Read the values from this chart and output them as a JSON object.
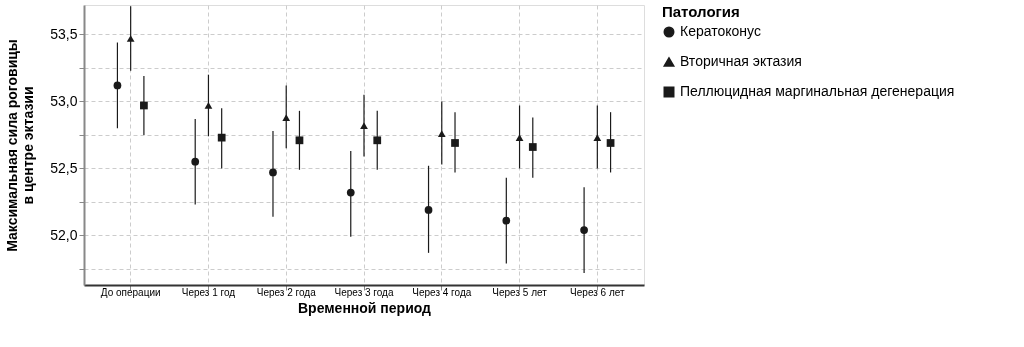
{
  "chart_data": {
    "type": "scatter",
    "xlabel": "Временной период",
    "ylabel": "Максимальная сила роговицы\nв центре эктазии",
    "legend_title": "Патология",
    "legend": "right",
    "grid": true,
    "line_style": "dashed",
    "categories": [
      "До операции",
      "Через 1 год",
      "Через 2 года",
      "Через 3 года",
      "Через 4 года",
      "Через 5 лет",
      "Через 6 лет"
    ],
    "ylim": [
      51.63,
      53.72
    ],
    "yticks": [
      {
        "value": 51.75,
        "label": null
      },
      {
        "value": 52.0,
        "label": "52,0"
      },
      {
        "value": 52.25,
        "label": null
      },
      {
        "value": 52.5,
        "label": "52,5"
      },
      {
        "value": 52.75,
        "label": null
      },
      {
        "value": 53.0,
        "label": "53,0"
      },
      {
        "value": 53.25,
        "label": null
      },
      {
        "value": 53.5,
        "label": "53,5"
      }
    ],
    "series": [
      {
        "name": "Кератоконус",
        "color": "#1a1a1a",
        "marker": "circle",
        "values": [
          53.12,
          52.55,
          52.47,
          52.32,
          52.19,
          52.11,
          52.04
        ],
        "errors": [
          [
            52.8,
            53.44
          ],
          [
            52.23,
            52.87
          ],
          [
            52.14,
            52.78
          ],
          [
            51.99,
            52.63
          ],
          [
            51.87,
            52.52
          ],
          [
            51.79,
            52.43
          ],
          [
            51.72,
            52.36
          ]
        ]
      },
      {
        "name": "Вторичная эктазия",
        "color": "#1a1a1a",
        "marker": "triangle",
        "values": [
          53.47,
          52.97,
          52.88,
          52.82,
          52.76,
          52.73,
          52.73
        ],
        "errors": [
          [
            53.23,
            53.71
          ],
          [
            52.74,
            53.2
          ],
          [
            52.65,
            53.12
          ],
          [
            52.59,
            53.05
          ],
          [
            52.53,
            53.0
          ],
          [
            52.5,
            52.97
          ],
          [
            52.5,
            52.97
          ]
        ]
      },
      {
        "name": "Пеллюцидная маргинальная дегенерация",
        "color": "#1a1a1a",
        "marker": "square",
        "values": [
          52.97,
          52.73,
          52.71,
          52.71,
          52.69,
          52.66,
          52.69
        ],
        "errors": [
          [
            52.75,
            53.19
          ],
          [
            52.5,
            52.95
          ],
          [
            52.49,
            52.93
          ],
          [
            52.49,
            52.93
          ],
          [
            52.47,
            52.92
          ],
          [
            52.43,
            52.88
          ],
          [
            52.47,
            52.92
          ]
        ]
      }
    ]
  }
}
